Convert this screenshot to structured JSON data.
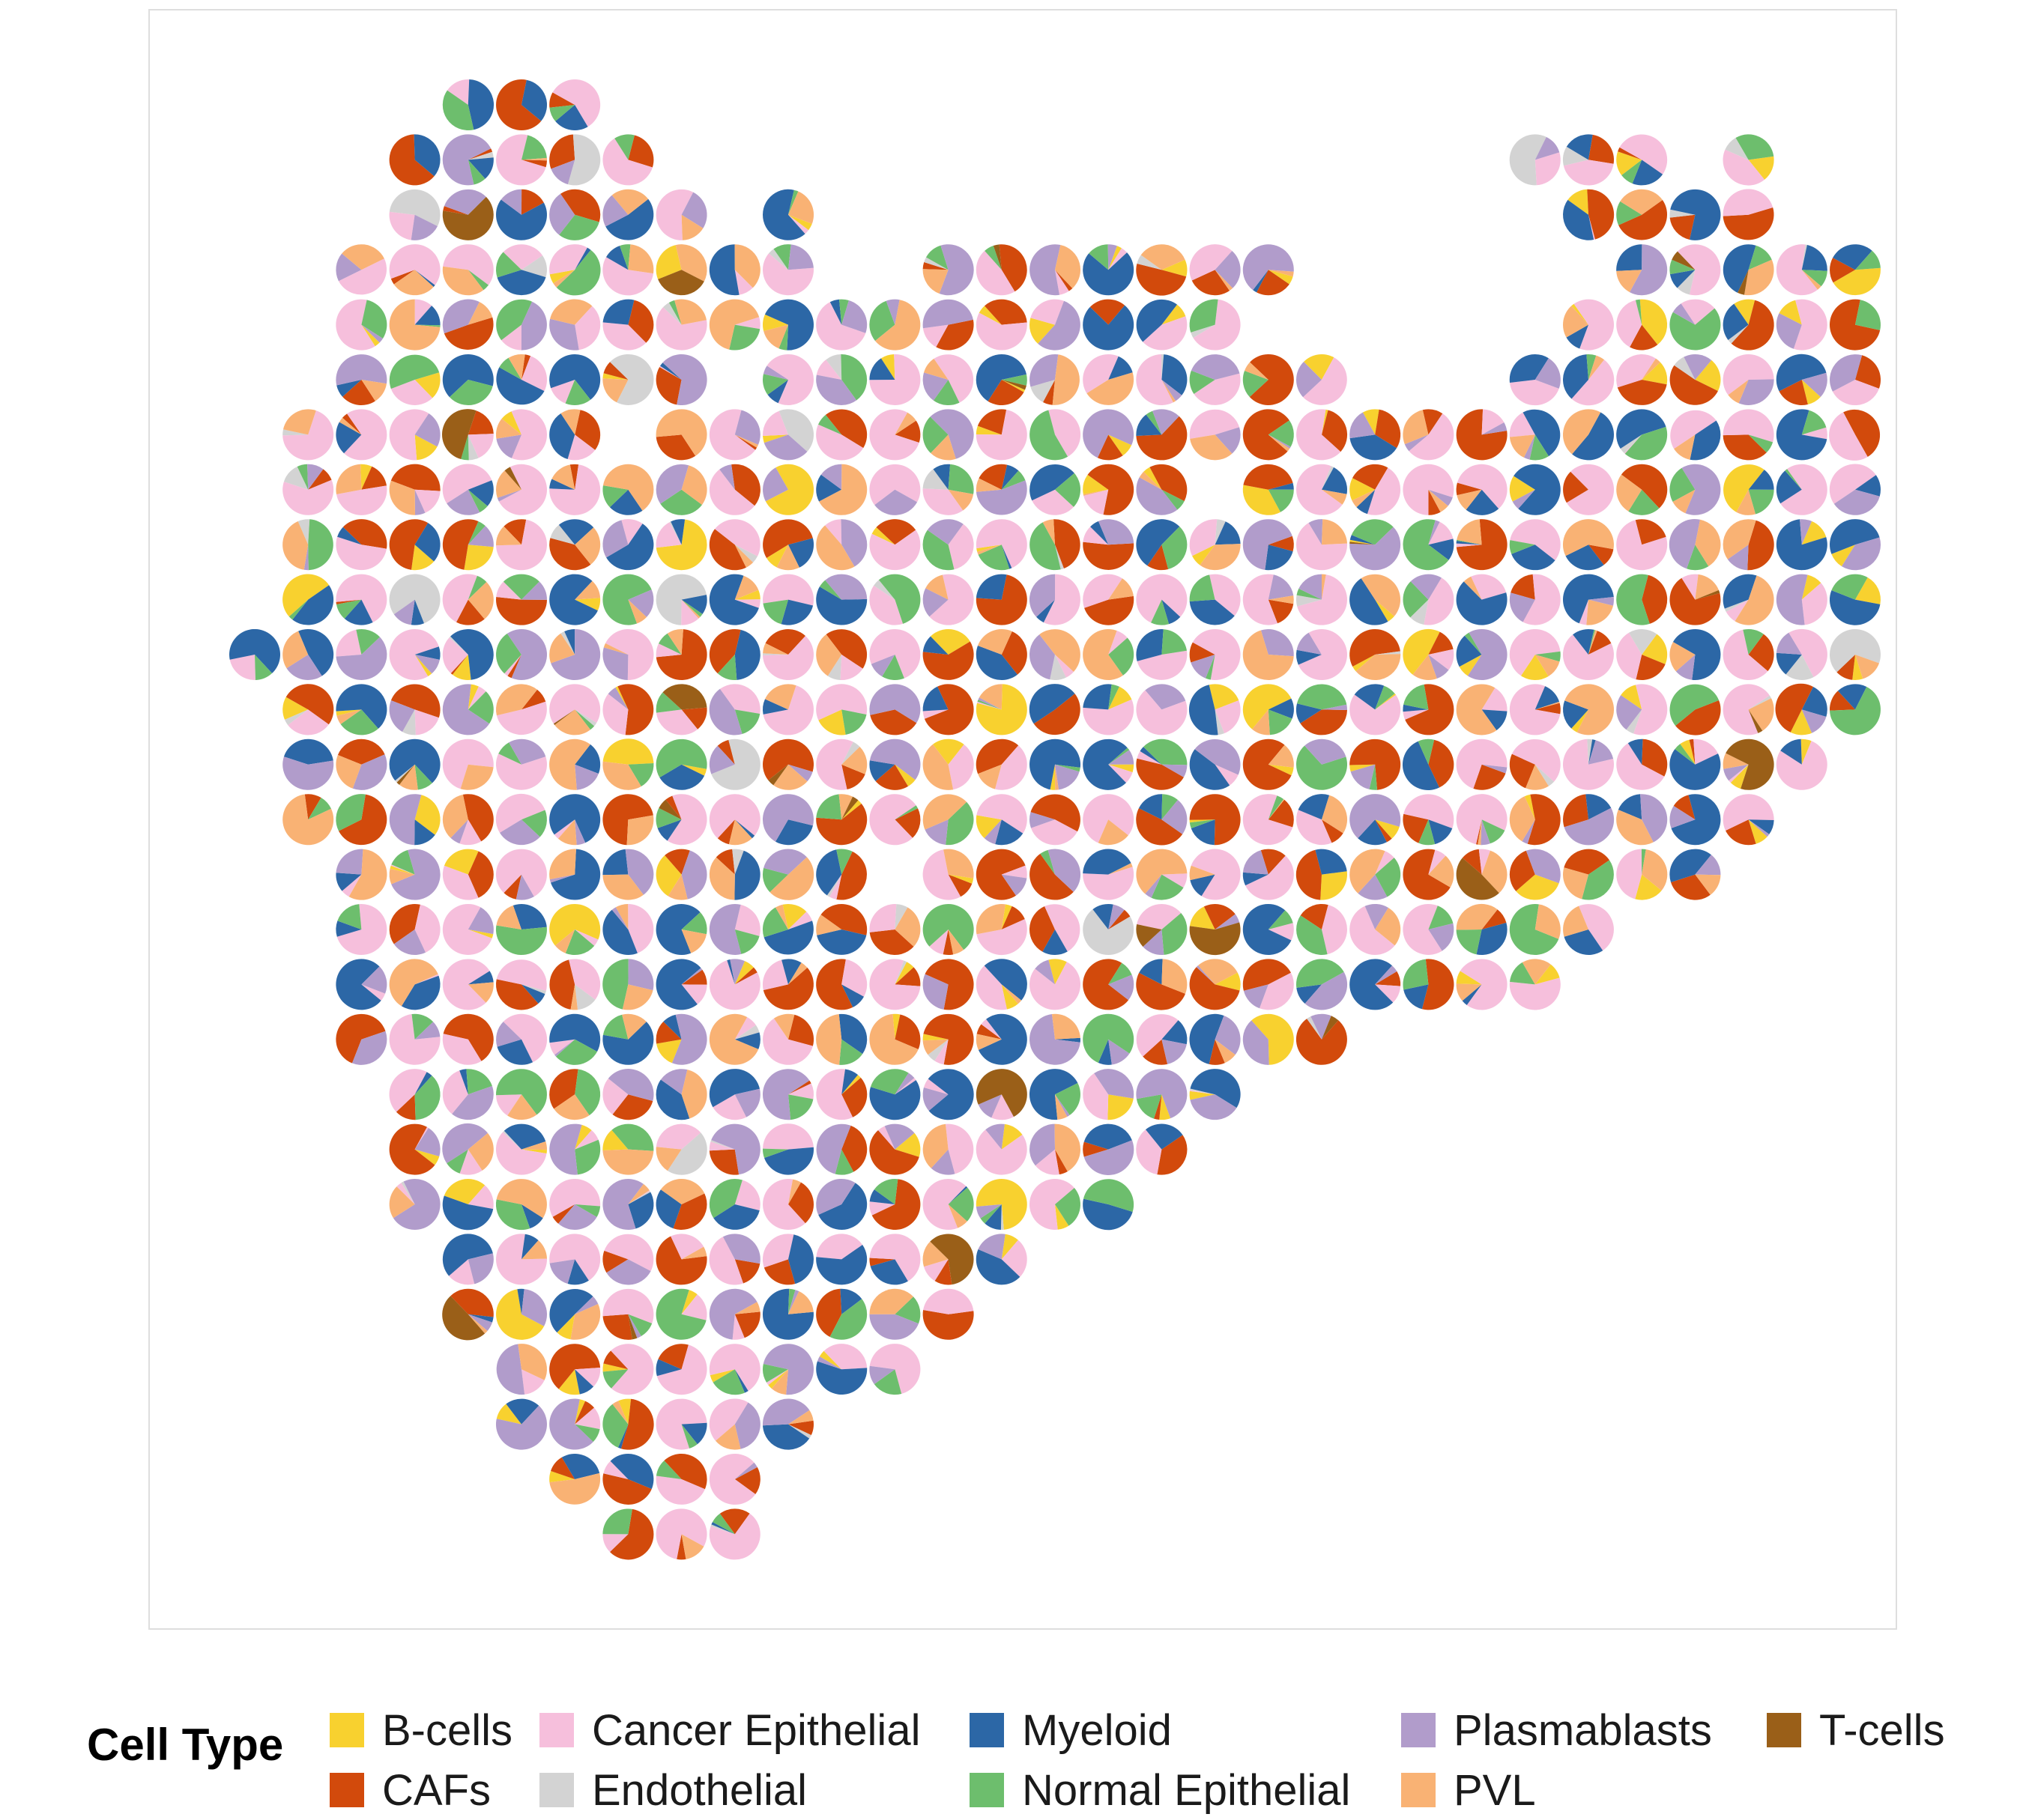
{
  "chart_data": {
    "type": "scatter",
    "subtype": "scatter-pie (spatial spots, each a pie of cell-type proportions)",
    "title": "",
    "xlabel": "",
    "ylabel": "",
    "axes_visible": false,
    "grid": false,
    "legend_position": "bottom",
    "legend": {
      "title": "Cell Type",
      "entries": [
        {
          "name": "B-cells",
          "color": "#F8D12F"
        },
        {
          "name": "CAFs",
          "color": "#D24A0C"
        },
        {
          "name": "Cancer Epithelial",
          "color": "#F6BFDC"
        },
        {
          "name": "Endothelial",
          "color": "#D3D3D3"
        },
        {
          "name": "Myeloid",
          "color": "#2C67A6"
        },
        {
          "name": "Normal Epithelial",
          "color": "#6DBE6D"
        },
        {
          "name": "Plasmablasts",
          "color": "#B19CCB"
        },
        {
          "name": "PVL",
          "color": "#F9B274"
        },
        {
          "name": "T-cells",
          "color": "#9A5F18"
        }
      ]
    },
    "spot_grid": {
      "columns": [
        "c0",
        "c1",
        "c2",
        "c3",
        "c4",
        "c5",
        "c6",
        "c7",
        "c8",
        "c9",
        "c10",
        "c11",
        "c12",
        "c13",
        "c14",
        "c15",
        "c16",
        "c17",
        "c18",
        "c19",
        "c20",
        "c21",
        "c22",
        "c23",
        "c24",
        "c25",
        "c26",
        "c27",
        "c28",
        "c29",
        "c30"
      ],
      "rows": [
        {
          "row": 0,
          "cols": [
            [
              4,
              6
            ]
          ]
        },
        {
          "row": 1,
          "cols": [
            [
              3,
              7
            ],
            [
              24,
              26
            ],
            [
              28,
              28
            ]
          ]
        },
        {
          "row": 2,
          "cols": [
            [
              3,
              8
            ],
            [
              10,
              10
            ],
            [
              25,
              28
            ]
          ]
        },
        {
          "row": 3,
          "cols": [
            [
              2,
              10
            ],
            [
              13,
              19
            ],
            [
              26,
              30
            ]
          ]
        },
        {
          "row": 4,
          "cols": [
            [
              2,
              18
            ],
            [
              25,
              30
            ]
          ]
        },
        {
          "row": 5,
          "cols": [
            [
              2,
              20
            ],
            [
              24,
              30
            ]
          ]
        },
        {
          "row": 6,
          "cols": [
            [
              1,
              30
            ]
          ]
        },
        {
          "row": 7,
          "cols": [
            [
              1,
              30
            ]
          ]
        },
        {
          "row": 8,
          "cols": [
            [
              1,
              30
            ]
          ]
        },
        {
          "row": 9,
          "cols": [
            [
              1,
              30
            ]
          ]
        },
        {
          "row": 10,
          "cols": [
            [
              0,
              30
            ]
          ]
        },
        {
          "row": 11,
          "cols": [
            [
              1,
              30
            ]
          ]
        },
        {
          "row": 12,
          "cols": [
            [
              1,
              29
            ]
          ]
        },
        {
          "row": 13,
          "cols": [
            [
              1,
              28
            ]
          ]
        },
        {
          "row": 14,
          "cols": [
            [
              2,
              27
            ]
          ]
        },
        {
          "row": 15,
          "cols": [
            [
              2,
              25
            ]
          ]
        },
        {
          "row": 16,
          "cols": [
            [
              2,
              24
            ]
          ]
        },
        {
          "row": 17,
          "cols": [
            [
              2,
              20
            ]
          ]
        },
        {
          "row": 18,
          "cols": [
            [
              3,
              18
            ]
          ]
        },
        {
          "row": 19,
          "cols": [
            [
              3,
              17
            ]
          ]
        },
        {
          "row": 20,
          "cols": [
            [
              3,
              16
            ]
          ]
        },
        {
          "row": 21,
          "cols": [
            [
              4,
              14
            ]
          ]
        },
        {
          "row": 22,
          "cols": [
            [
              4,
              13
            ]
          ]
        },
        {
          "row": 23,
          "cols": [
            [
              5,
              12
            ]
          ]
        },
        {
          "row": 24,
          "cols": [
            [
              5,
              10
            ]
          ]
        },
        {
          "row": 25,
          "cols": [
            [
              6,
              9
            ]
          ]
        },
        {
          "row": 26,
          "cols": [
            [
              7,
              9
            ]
          ]
        }
      ],
      "holes": [
        [
          6,
          7
        ],
        [
          14,
          12
        ],
        [
          5,
          9
        ],
        [
          7,
          18
        ]
      ],
      "mixture": {
        "dominant_weights": [
          0.02,
          0.22,
          0.36,
          0.02,
          0.16,
          0.03,
          0.12,
          0.05,
          0.02
        ],
        "seed": 11
      }
    },
    "notable_spots": [
      {
        "row": 10,
        "col": 0,
        "dominant": "Myeloid"
      },
      {
        "row": 2,
        "col": 4,
        "dominant": "T-cells"
      },
      {
        "row": 5,
        "col": 15,
        "dominant": "PVL"
      },
      {
        "row": 9,
        "col": 28,
        "dominant": "PVL"
      },
      {
        "row": 3,
        "col": 26,
        "dominant": "Plasmablasts"
      },
      {
        "row": 1,
        "col": 24,
        "dominant": "Endothelial"
      },
      {
        "row": 24,
        "col": 9,
        "dominant": "Plasmablasts"
      },
      {
        "row": 0,
        "col": 4,
        "dominant": "Myeloid"
      }
    ]
  }
}
